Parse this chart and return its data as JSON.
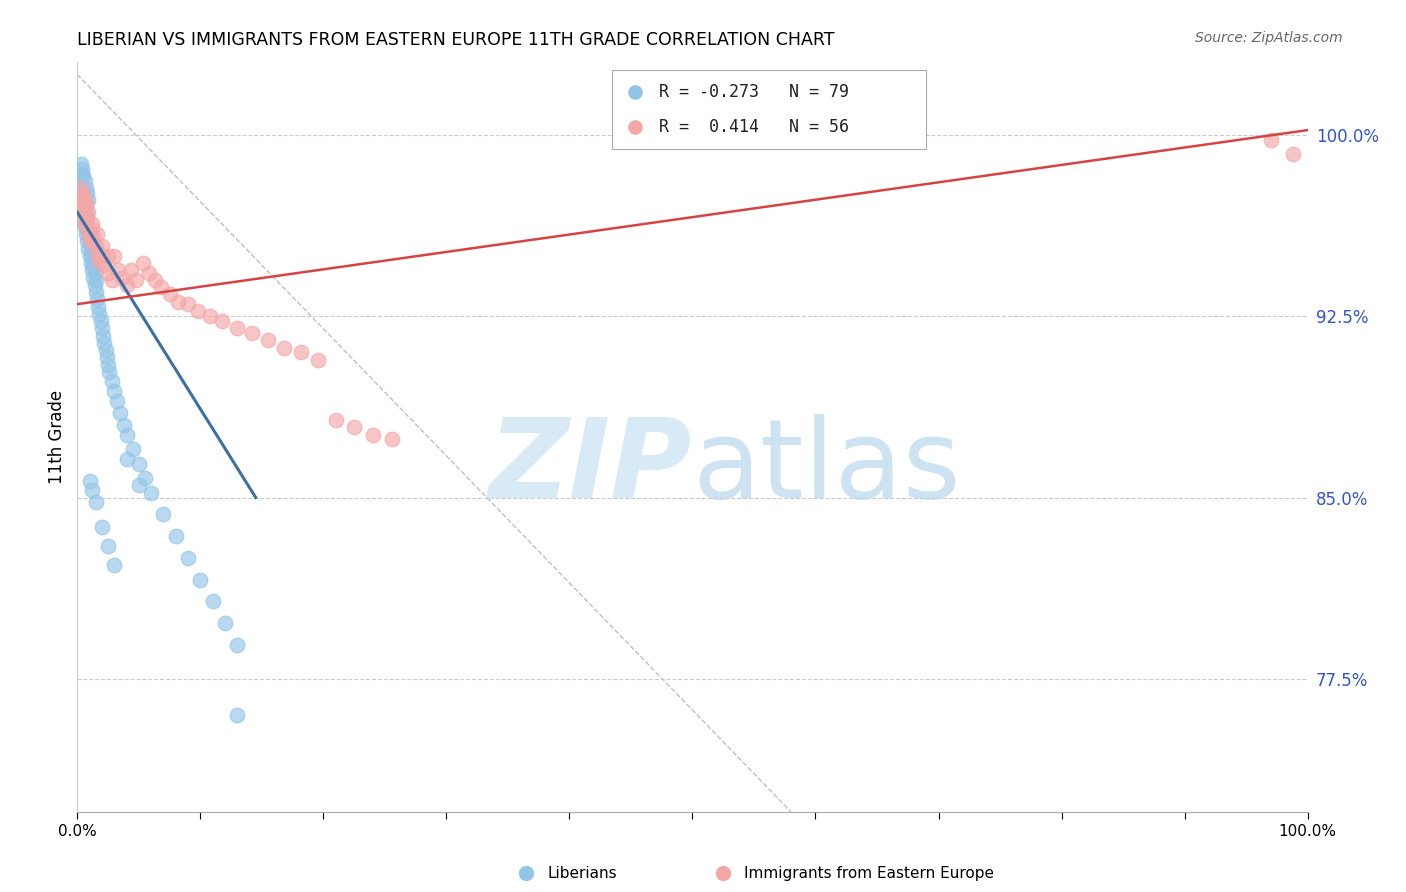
{
  "title": "LIBERIAN VS IMMIGRANTS FROM EASTERN EUROPE 11TH GRADE CORRELATION CHART",
  "source": "Source: ZipAtlas.com",
  "ylabel": "11th Grade",
  "xlim": [
    0.0,
    1.0
  ],
  "ylim": [
    0.72,
    1.03
  ],
  "yticks": [
    0.775,
    0.85,
    0.925,
    1.0
  ],
  "ytick_labels": [
    "77.5%",
    "85.0%",
    "92.5%",
    "100.0%"
  ],
  "xticks": [
    0.0,
    0.1,
    0.2,
    0.3,
    0.4,
    0.5,
    0.6,
    0.7,
    0.8,
    0.9,
    1.0
  ],
  "xtick_labels": [
    "0.0%",
    "",
    "",
    "",
    "",
    "",
    "",
    "",
    "",
    "",
    "100.0%"
  ],
  "blue_R": -0.273,
  "blue_N": 79,
  "pink_R": 0.414,
  "pink_N": 56,
  "blue_color": "#92c5e8",
  "pink_color": "#f4a7a7",
  "blue_line_color": "#3d6fa3",
  "pink_line_color": "#d44444",
  "grid_color": "#cccccc",
  "legend_edge_color": "#aaaaaa",
  "blue_line_x": [
    0.0,
    0.145
  ],
  "blue_line_y": [
    0.968,
    0.85
  ],
  "pink_line_x": [
    0.0,
    1.0
  ],
  "pink_line_y": [
    0.93,
    1.002
  ],
  "diag_line_x": [
    0.0,
    0.58
  ],
  "diag_line_y": [
    1.025,
    0.72
  ],
  "blue_scatter_x": [
    0.001,
    0.002,
    0.002,
    0.003,
    0.003,
    0.004,
    0.004,
    0.004,
    0.005,
    0.005,
    0.005,
    0.006,
    0.006,
    0.006,
    0.007,
    0.007,
    0.007,
    0.008,
    0.008,
    0.008,
    0.009,
    0.009,
    0.01,
    0.01,
    0.01,
    0.011,
    0.011,
    0.012,
    0.012,
    0.013,
    0.013,
    0.014,
    0.014,
    0.015,
    0.015,
    0.016,
    0.017,
    0.018,
    0.019,
    0.02,
    0.021,
    0.022,
    0.023,
    0.024,
    0.025,
    0.026,
    0.028,
    0.03,
    0.032,
    0.035,
    0.038,
    0.04,
    0.045,
    0.05,
    0.055,
    0.06,
    0.07,
    0.08,
    0.09,
    0.1,
    0.11,
    0.12,
    0.13,
    0.003,
    0.004,
    0.005,
    0.006,
    0.007,
    0.008,
    0.009,
    0.01,
    0.012,
    0.015,
    0.02,
    0.025,
    0.03,
    0.04,
    0.05,
    0.13
  ],
  "blue_scatter_y": [
    0.978,
    0.975,
    0.98,
    0.972,
    0.982,
    0.968,
    0.974,
    0.984,
    0.965,
    0.97,
    0.976,
    0.962,
    0.967,
    0.973,
    0.959,
    0.964,
    0.969,
    0.956,
    0.961,
    0.966,
    0.953,
    0.958,
    0.95,
    0.955,
    0.96,
    0.947,
    0.952,
    0.944,
    0.949,
    0.941,
    0.946,
    0.938,
    0.943,
    0.935,
    0.94,
    0.932,
    0.929,
    0.926,
    0.923,
    0.92,
    0.917,
    0.914,
    0.911,
    0.908,
    0.905,
    0.902,
    0.898,
    0.894,
    0.89,
    0.885,
    0.88,
    0.876,
    0.87,
    0.864,
    0.858,
    0.852,
    0.843,
    0.834,
    0.825,
    0.816,
    0.807,
    0.798,
    0.789,
    0.988,
    0.986,
    0.983,
    0.981,
    0.978,
    0.976,
    0.973,
    0.857,
    0.853,
    0.848,
    0.838,
    0.83,
    0.822,
    0.866,
    0.855,
    0.76
  ],
  "pink_scatter_x": [
    0.001,
    0.002,
    0.003,
    0.004,
    0.005,
    0.006,
    0.007,
    0.008,
    0.009,
    0.01,
    0.011,
    0.012,
    0.013,
    0.015,
    0.016,
    0.018,
    0.02,
    0.022,
    0.025,
    0.028,
    0.03,
    0.033,
    0.036,
    0.04,
    0.044,
    0.048,
    0.053,
    0.058,
    0.063,
    0.068,
    0.075,
    0.082,
    0.09,
    0.098,
    0.108,
    0.118,
    0.13,
    0.142,
    0.155,
    0.168,
    0.182,
    0.196,
    0.21,
    0.225,
    0.24,
    0.256,
    0.003,
    0.005,
    0.007,
    0.009,
    0.012,
    0.016,
    0.02,
    0.025,
    0.97,
    0.988
  ],
  "pink_scatter_y": [
    0.965,
    0.972,
    0.975,
    0.97,
    0.968,
    0.973,
    0.966,
    0.963,
    0.96,
    0.958,
    0.956,
    0.961,
    0.958,
    0.954,
    0.951,
    0.948,
    0.95,
    0.946,
    0.943,
    0.94,
    0.95,
    0.944,
    0.941,
    0.938,
    0.944,
    0.94,
    0.947,
    0.943,
    0.94,
    0.937,
    0.934,
    0.931,
    0.93,
    0.927,
    0.925,
    0.923,
    0.92,
    0.918,
    0.915,
    0.912,
    0.91,
    0.907,
    0.882,
    0.879,
    0.876,
    0.874,
    0.978,
    0.975,
    0.971,
    0.968,
    0.963,
    0.959,
    0.954,
    0.95,
    0.998,
    0.992
  ]
}
